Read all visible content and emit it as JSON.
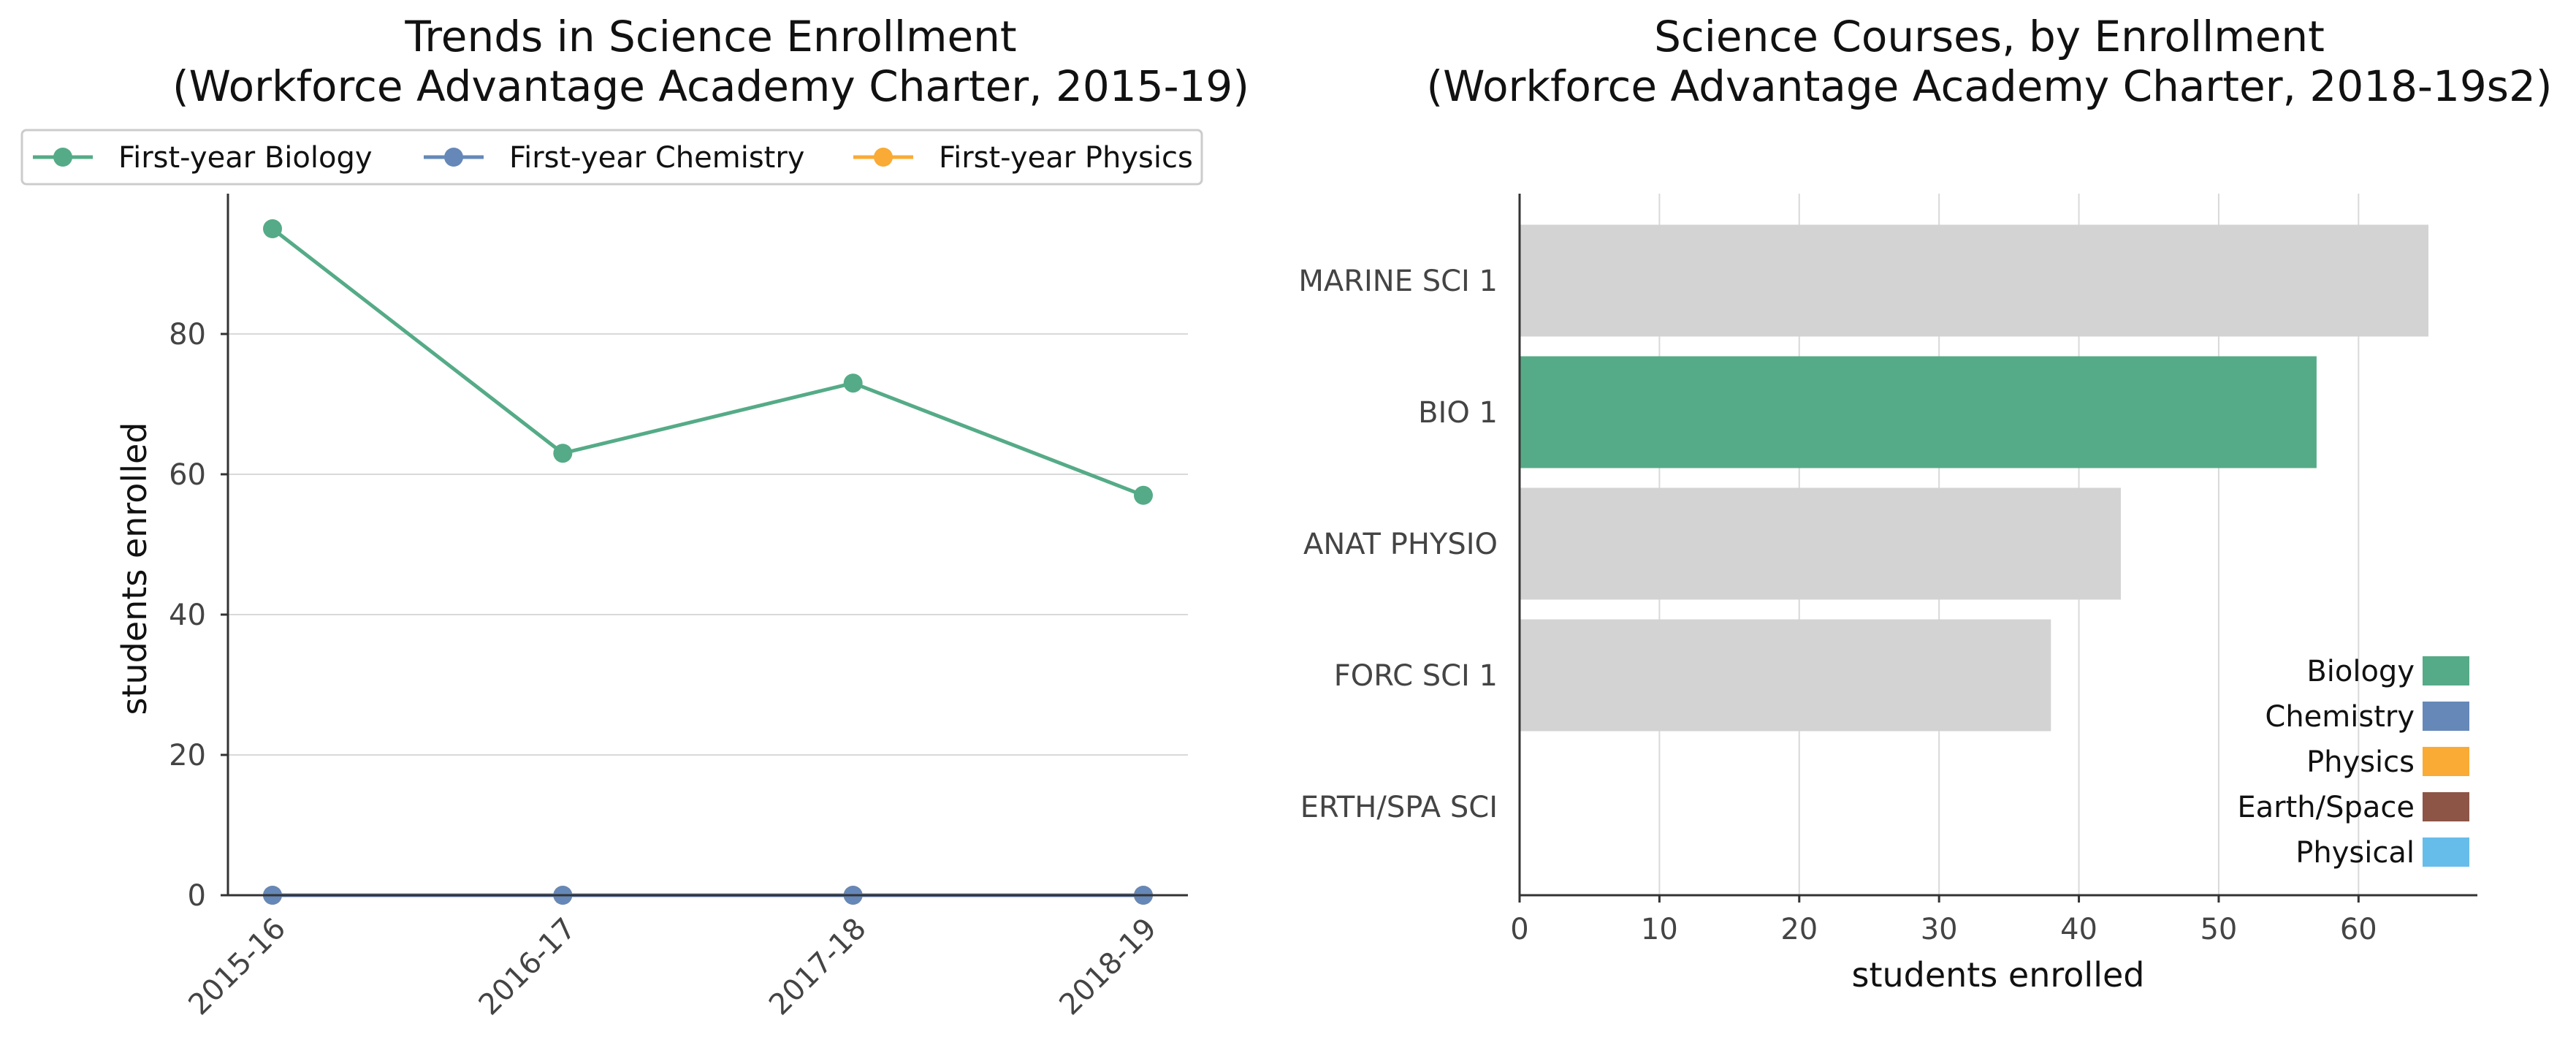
{
  "colors": {
    "biology": "#55ab87",
    "chemistry": "#6588b8",
    "physics": "#f9ab35",
    "earth_space": "#8d5546",
    "physical": "#67bdea",
    "neutral_bar": "#d3d3d3",
    "grid": "#d9d9d9",
    "axis": "#333333"
  },
  "chart_data": [
    {
      "type": "line",
      "title_line1": "Trends in Science Enrollment",
      "title_line2": "(Workforce Advantage Academy Charter, 2015-19)",
      "xlabel": "",
      "ylabel": "students enrolled",
      "categories": [
        "2015-16",
        "2016-17",
        "2017-18",
        "2018-19"
      ],
      "ylim": [
        0,
        100
      ],
      "yticks": [
        0,
        20,
        40,
        60,
        80
      ],
      "grid": "horizontal",
      "legend_position": "top",
      "series": [
        {
          "name": "First-year Biology",
          "color_key": "biology",
          "values": [
            95,
            63,
            73,
            57
          ]
        },
        {
          "name": "First-year Chemistry",
          "color_key": "chemistry",
          "values": [
            0,
            0,
            0,
            0
          ]
        },
        {
          "name": "First-year Physics",
          "color_key": "physics",
          "values": [
            0,
            0,
            0,
            0
          ]
        }
      ]
    },
    {
      "type": "bar",
      "orientation": "horizontal",
      "title_line1": "Science Courses, by Enrollment",
      "title_line2": "(Workforce Advantage Academy Charter, 2018-19s2)",
      "xlabel": "students enrolled",
      "ylabel": "",
      "categories": [
        "MARINE SCI 1",
        "BIO 1",
        "ANAT PHYSIO",
        "FORC SCI 1",
        "ERTH/SPA SCI"
      ],
      "values": [
        65,
        57,
        43,
        38,
        0
      ],
      "bar_color_keys": [
        "neutral_bar",
        "biology",
        "neutral_bar",
        "neutral_bar",
        "neutral_bar"
      ],
      "xlim": [
        0,
        68.5
      ],
      "xticks": [
        0,
        10,
        20,
        30,
        40,
        50,
        60
      ],
      "grid": "vertical",
      "legend_position": "bottom-right",
      "legend": [
        {
          "label": "Biology",
          "color_key": "biology"
        },
        {
          "label": "Chemistry",
          "color_key": "chemistry"
        },
        {
          "label": "Physics",
          "color_key": "physics"
        },
        {
          "label": "Earth/Space",
          "color_key": "earth_space"
        },
        {
          "label": "Physical",
          "color_key": "physical"
        }
      ]
    }
  ]
}
